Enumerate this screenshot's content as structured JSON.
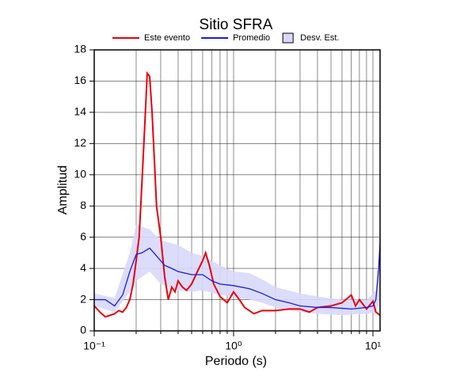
{
  "chart_data": {
    "type": "line",
    "title": "Sitio SFRA",
    "xlabel": "Periodo (s)",
    "ylabel": "Amplitud",
    "xscale": "log",
    "grid": true,
    "xlim": [
      0.1,
      11.25
    ],
    "ylim": [
      0,
      18
    ],
    "xticks": [
      {
        "value": 0.1,
        "label": "10⁻¹"
      },
      {
        "value": 1,
        "label": "10⁰"
      },
      {
        "value": 10,
        "label": "10¹"
      }
    ],
    "xminorticks": [
      0.2,
      0.3,
      0.4,
      0.5,
      0.6,
      0.7,
      0.8,
      0.9,
      2,
      3,
      4,
      5,
      6,
      7,
      8,
      9
    ],
    "yticks": [
      0,
      2,
      4,
      6,
      8,
      10,
      12,
      14,
      16,
      18
    ],
    "series": [
      {
        "name": "Este evento",
        "color": "#e8000b",
        "x": [
          0.1,
          0.11,
          0.12,
          0.13,
          0.14,
          0.15,
          0.16,
          0.17,
          0.18,
          0.19,
          0.2,
          0.21,
          0.22,
          0.23,
          0.24,
          0.25,
          0.26,
          0.27,
          0.28,
          0.3,
          0.32,
          0.34,
          0.36,
          0.38,
          0.4,
          0.43,
          0.46,
          0.5,
          0.55,
          0.6,
          0.63,
          0.67,
          0.72,
          0.8,
          0.9,
          1.0,
          1.1,
          1.2,
          1.4,
          1.6,
          2,
          2.5,
          3,
          3.5,
          4,
          5,
          6,
          7,
          7.5,
          8,
          9,
          10,
          10.5,
          11.25
        ],
        "values": [
          1.6,
          1.2,
          0.9,
          1.0,
          1.1,
          1.3,
          1.2,
          1.5,
          2.0,
          3.0,
          4.5,
          6.0,
          9.5,
          13,
          16.5,
          16.3,
          14,
          11,
          8,
          6,
          3.5,
          2.0,
          2.8,
          2.5,
          3.2,
          2.8,
          2.6,
          3.0,
          3.8,
          4.5,
          5.0,
          4.2,
          3.0,
          2.2,
          1.8,
          2.5,
          2.0,
          1.5,
          1.1,
          1.3,
          1.3,
          1.4,
          1.4,
          1.2,
          1.5,
          1.6,
          1.8,
          2.3,
          1.6,
          2.0,
          1.4,
          1.9,
          1.2,
          1.0
        ]
      },
      {
        "name": "Promedio",
        "color": "#1a1ae6",
        "x": [
          0.1,
          0.12,
          0.14,
          0.16,
          0.18,
          0.2,
          0.22,
          0.25,
          0.28,
          0.32,
          0.36,
          0.4,
          0.5,
          0.6,
          0.7,
          0.8,
          1.0,
          1.3,
          1.6,
          2,
          2.5,
          3,
          4,
          5,
          7,
          9,
          10,
          10.5,
          11,
          11.25
        ],
        "values": [
          2.0,
          2.0,
          1.6,
          2.3,
          3.8,
          4.9,
          5.0,
          5.3,
          4.8,
          4.2,
          4.0,
          3.8,
          3.6,
          3.6,
          3.2,
          3.0,
          2.9,
          2.7,
          2.4,
          2.0,
          1.8,
          1.6,
          1.5,
          1.5,
          1.4,
          1.5,
          1.6,
          2.0,
          4.0,
          5.5
        ]
      },
      {
        "name": "Desv. Est.",
        "color": "#d8d8fb",
        "x": [
          0.1,
          0.14,
          0.18,
          0.2,
          0.25,
          0.3,
          0.4,
          0.5,
          0.6,
          0.8,
          1.0,
          1.3,
          1.6,
          2,
          3,
          4,
          6,
          9,
          10.5,
          11.25
        ],
        "upper": [
          2.4,
          2.1,
          5.0,
          6.8,
          6.5,
          5.8,
          5.5,
          5.0,
          4.8,
          4.2,
          3.8,
          3.7,
          3.3,
          2.8,
          2.4,
          2.2,
          2.0,
          2.0,
          2.6,
          7.0
        ],
        "lower": [
          1.6,
          1.2,
          2.5,
          3.2,
          3.8,
          3.0,
          2.6,
          2.5,
          2.6,
          2.3,
          2.2,
          2.0,
          1.8,
          1.5,
          1.2,
          1.1,
          1.0,
          1.1,
          1.2,
          2.0
        ]
      }
    ]
  }
}
